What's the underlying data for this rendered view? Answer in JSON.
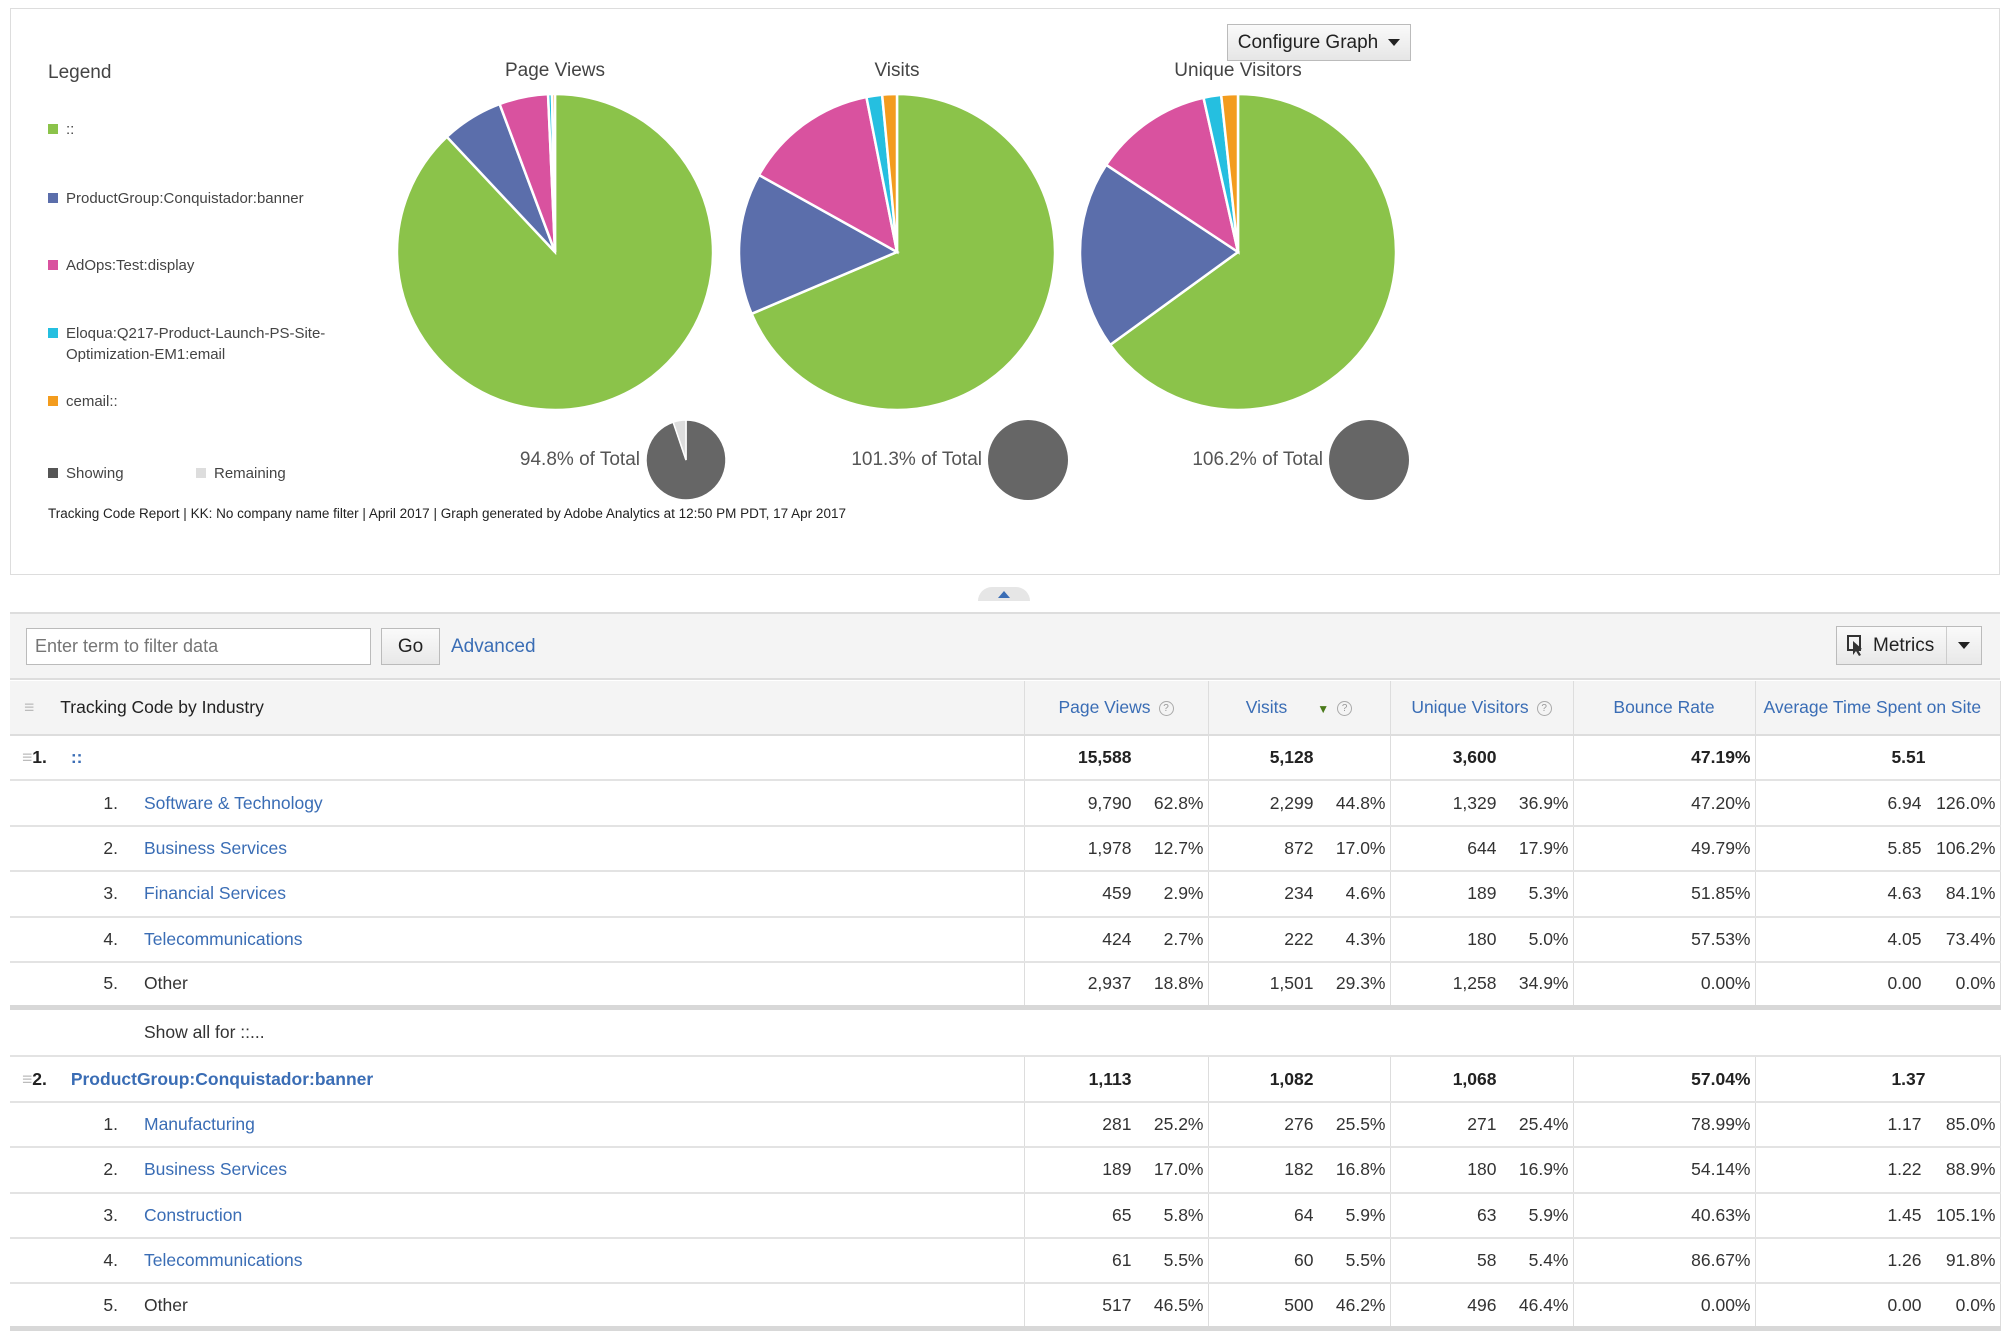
{
  "graph": {
    "configure_label": "Configure Graph",
    "legend_title": "Legend",
    "legend": [
      {
        "label": "::",
        "color": "#8bc34a"
      },
      {
        "label": "ProductGroup:Conquistador:banner",
        "color": "#5b6eab"
      },
      {
        "label": "AdOps:Test:display",
        "color": "#d9529f"
      },
      {
        "label": "Eloqua:Q217-Product-Launch-PS-Site-Optimization-EM1:email",
        "color": "#25bfe0"
      },
      {
        "label": "cemail::",
        "color": "#f39c1e"
      }
    ],
    "showing_label": "Showing",
    "remaining_label": "Remaining",
    "showing_color": "#666666",
    "remaining_color": "#dddddd",
    "footer": "Tracking Code Report | KK: No company name filter | April 2017 | Graph generated by Adobe Analytics at 12:50 PM PDT, 17 Apr 2017"
  },
  "chart_data": [
    {
      "type": "pie",
      "title": "Page Views",
      "categories": [
        "::",
        "ProductGroup:Conquistador:banner",
        "AdOps:Test:display",
        "Eloqua:Q217-Product-Launch-PS-Site-Optimization-EM1:email",
        "cemail::"
      ],
      "values": [
        88.0,
        6.3,
        5.0,
        0.4,
        0.3
      ],
      "total_label": "94.8% of Total",
      "showing_pct": 94.8
    },
    {
      "type": "pie",
      "title": "Visits",
      "categories": [
        "::",
        "ProductGroup:Conquistador:banner",
        "AdOps:Test:display",
        "Eloqua:Q217-Product-Launch-PS-Site-Optimization-EM1:email",
        "cemail::"
      ],
      "values": [
        68.6,
        14.5,
        13.8,
        1.6,
        1.5
      ],
      "total_label": "101.3% of Total",
      "showing_pct": 101.3
    },
    {
      "type": "pie",
      "title": "Unique Visitors",
      "categories": [
        "::",
        "ProductGroup:Conquistador:banner",
        "AdOps:Test:display",
        "Eloqua:Q217-Product-Launch-PS-Site-Optimization-EM1:email",
        "cemail::"
      ],
      "values": [
        65.0,
        19.3,
        12.2,
        1.8,
        1.7
      ],
      "total_label": "106.2% of Total",
      "showing_pct": 106.2
    }
  ],
  "toolbar": {
    "filter_placeholder": "Enter term to filter data",
    "go_label": "Go",
    "advanced_label": "Advanced",
    "metrics_label": "Metrics"
  },
  "table": {
    "headers": [
      "Tracking Code by Industry",
      "Page Views",
      "Visits",
      "Unique Visitors",
      "Bounce Rate",
      "Average Time Spent on Site"
    ],
    "sorted_column": "Visits",
    "groups": [
      {
        "index": "1.",
        "label": "::",
        "totals": [
          "15,588",
          "5,128",
          "3,600",
          "47.19%",
          "5.51"
        ],
        "rows": [
          {
            "index": "1.",
            "label": "Software & Technology",
            "link": true,
            "pv": [
              "9,790",
              "62.8%"
            ],
            "visits": [
              "2,299",
              "44.8%"
            ],
            "uv": [
              "1,329",
              "36.9%"
            ],
            "bounce": "47.20%",
            "time": [
              "6.94",
              "126.0%"
            ]
          },
          {
            "index": "2.",
            "label": "Business Services",
            "link": true,
            "pv": [
              "1,978",
              "12.7%"
            ],
            "visits": [
              "872",
              "17.0%"
            ],
            "uv": [
              "644",
              "17.9%"
            ],
            "bounce": "49.79%",
            "time": [
              "5.85",
              "106.2%"
            ]
          },
          {
            "index": "3.",
            "label": "Financial Services",
            "link": true,
            "pv": [
              "459",
              "2.9%"
            ],
            "visits": [
              "234",
              "4.6%"
            ],
            "uv": [
              "189",
              "5.3%"
            ],
            "bounce": "51.85%",
            "time": [
              "4.63",
              "84.1%"
            ]
          },
          {
            "index": "4.",
            "label": "Telecommunications",
            "link": true,
            "pv": [
              "424",
              "2.7%"
            ],
            "visits": [
              "222",
              "4.3%"
            ],
            "uv": [
              "180",
              "5.0%"
            ],
            "bounce": "57.53%",
            "time": [
              "4.05",
              "73.4%"
            ]
          },
          {
            "index": "5.",
            "label": "Other",
            "link": false,
            "pv": [
              "2,937",
              "18.8%"
            ],
            "visits": [
              "1,501",
              "29.3%"
            ],
            "uv": [
              "1,258",
              "34.9%"
            ],
            "bounce": "0.00%",
            "time": [
              "0.00",
              "0.0%"
            ]
          }
        ],
        "show_all": "Show all for ::..."
      },
      {
        "index": "2.",
        "label": "ProductGroup:Conquistador:banner",
        "totals": [
          "1,113",
          "1,082",
          "1,068",
          "57.04%",
          "1.37"
        ],
        "rows": [
          {
            "index": "1.",
            "label": "Manufacturing",
            "link": true,
            "pv": [
              "281",
              "25.2%"
            ],
            "visits": [
              "276",
              "25.5%"
            ],
            "uv": [
              "271",
              "25.4%"
            ],
            "bounce": "78.99%",
            "time": [
              "1.17",
              "85.0%"
            ]
          },
          {
            "index": "2.",
            "label": "Business Services",
            "link": true,
            "pv": [
              "189",
              "17.0%"
            ],
            "visits": [
              "182",
              "16.8%"
            ],
            "uv": [
              "180",
              "16.9%"
            ],
            "bounce": "54.14%",
            "time": [
              "1.22",
              "88.9%"
            ]
          },
          {
            "index": "3.",
            "label": "Construction",
            "link": true,
            "pv": [
              "65",
              "5.8%"
            ],
            "visits": [
              "64",
              "5.9%"
            ],
            "uv": [
              "63",
              "5.9%"
            ],
            "bounce": "40.63%",
            "time": [
              "1.45",
              "105.1%"
            ]
          },
          {
            "index": "4.",
            "label": "Telecommunications",
            "link": true,
            "pv": [
              "61",
              "5.5%"
            ],
            "visits": [
              "60",
              "5.5%"
            ],
            "uv": [
              "58",
              "5.4%"
            ],
            "bounce": "86.67%",
            "time": [
              "1.26",
              "91.8%"
            ]
          },
          {
            "index": "5.",
            "label": "Other",
            "link": false,
            "pv": [
              "517",
              "46.5%"
            ],
            "visits": [
              "500",
              "46.2%"
            ],
            "uv": [
              "496",
              "46.4%"
            ],
            "bounce": "0.00%",
            "time": [
              "0.00",
              "0.0%"
            ]
          }
        ]
      }
    ]
  }
}
